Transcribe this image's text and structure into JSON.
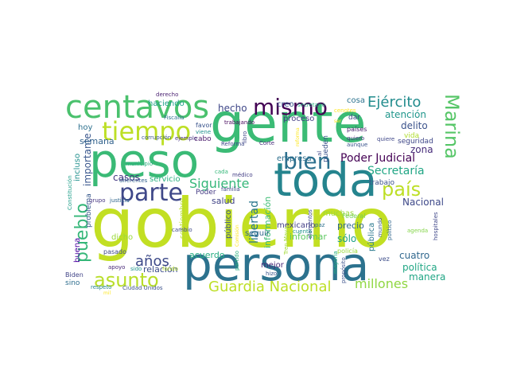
{
  "word_cloud": {
    "words": [
      {
        "text": "gobierno",
        "color": "#c2df23"
      },
      {
        "text": "gente",
        "color": "#3bbb75"
      },
      {
        "text": "persona",
        "color": "#2c728e"
      },
      {
        "text": "toda",
        "color": "#25848e"
      },
      {
        "text": "peso",
        "color": "#3aba76"
      },
      {
        "text": "centavos",
        "color": "#4ac16d"
      },
      {
        "text": "tiempo",
        "color": "#bddf26"
      },
      {
        "text": "mismo",
        "color": "#440154"
      },
      {
        "text": "parte",
        "color": "#3f4889"
      },
      {
        "text": "bien",
        "color": "#2d708e"
      },
      {
        "text": "asunto",
        "color": "#b8de29"
      },
      {
        "text": "Guardia Nacional",
        "color": "#bddf26"
      },
      {
        "text": "Marina",
        "color": "#56c667"
      },
      {
        "text": "pueblo",
        "color": "#35b779"
      },
      {
        "text": "país",
        "color": "#bddf26"
      },
      {
        "text": "Ejército",
        "color": "#228c8d"
      },
      {
        "text": "Siguiente",
        "color": "#35b779"
      },
      {
        "text": "millones",
        "color": "#90d743"
      },
      {
        "text": "años",
        "color": "#3e4a89"
      },
      {
        "text": "Poder Judicial",
        "color": "#440154"
      },
      {
        "text": "Secretaría",
        "color": "#21a685"
      },
      {
        "text": "hecho",
        "color": "#3f4788"
      },
      {
        "text": "libertad",
        "color": "#2a768e"
      },
      {
        "text": "información",
        "color": "#3dbc74"
      },
      {
        "text": "atención",
        "color": "#1f968b"
      },
      {
        "text": "delito",
        "color": "#3b528b"
      },
      {
        "text": "zona",
        "color": "#472c7a"
      },
      {
        "text": "Nacional",
        "color": "#3e4989"
      },
      {
        "text": "política",
        "color": "#22a785"
      },
      {
        "text": "cuatro",
        "color": "#31688e"
      },
      {
        "text": "manera",
        "color": "#21a685"
      },
      {
        "text": "importante",
        "color": "#39568c"
      },
      {
        "text": "semana",
        "color": "#33638d"
      },
      {
        "text": "casos",
        "color": "#453781"
      },
      {
        "text": "servicio",
        "color": "#29af7f"
      },
      {
        "text": "salud",
        "color": "#414487"
      },
      {
        "text": "precio",
        "color": "#30698e"
      },
      {
        "text": "sólo",
        "color": "#1fa187"
      },
      {
        "text": "informar",
        "color": "#5ec962"
      },
      {
        "text": "mexicano",
        "color": "#433e85"
      },
      {
        "text": "muchas",
        "color": "#9bd93c"
      },
      {
        "text": "relación",
        "color": "#3d4d8a"
      },
      {
        "text": "acuerdo",
        "color": "#25ac82"
      },
      {
        "text": "haciendo",
        "color": "#1fa088"
      },
      {
        "text": "creo",
        "color": "#39568c"
      },
      {
        "text": "cosa",
        "color": "#2c738e"
      },
      {
        "text": "seguir",
        "color": "#31678e"
      },
      {
        "text": "mejor",
        "color": "#482878"
      },
      {
        "text": "público",
        "color": "#3a548c"
      },
      {
        "text": "pública",
        "color": "#2a788e"
      },
      {
        "text": "seguridad",
        "color": "#3f4788"
      },
      {
        "text": "trabajo",
        "color": "#3b528b"
      },
      {
        "text": "hoy",
        "color": "#2d718e"
      },
      {
        "text": "incluso",
        "color": "#21908d"
      },
      {
        "text": "buena",
        "color": "#4c02a1"
      },
      {
        "text": "dicho",
        "color": "#9bd93c"
      },
      {
        "text": "proceso",
        "color": "#433d84"
      },
      {
        "text": "pueden",
        "color": "#3b528b"
      },
      {
        "text": "quiero",
        "color": "#46327e"
      },
      {
        "text": "vida",
        "color": "#b0dd2f"
      },
      {
        "text": "dar",
        "color": "#3e4989"
      },
      {
        "text": "empresa",
        "color": "#2e6f8e"
      },
      {
        "text": "cabo",
        "color": "#48186a"
      },
      {
        "text": "favor",
        "color": "#3a548c"
      },
      {
        "text": "problema",
        "color": "#38598c"
      },
      {
        "text": "Poder",
        "color": "#443a83"
      },
      {
        "text": "septiembre",
        "color": "#b8de29"
      },
      {
        "text": "pasado",
        "color": "#3f4889"
      },
      {
        "text": "sino",
        "color": "#2e6e8e"
      },
      {
        "text": "Biden",
        "color": "#414487"
      },
      {
        "text": "respeto",
        "color": "#25848e"
      },
      {
        "text": "Ciudad Unidos",
        "color": "#3b518b"
      },
      {
        "text": "apoyo",
        "color": "#482878"
      },
      {
        "text": "sido",
        "color": "#20928c"
      },
      {
        "text": "fondo",
        "color": "#b5de2b"
      },
      {
        "text": "cambio",
        "color": "#3e4989"
      },
      {
        "text": "grupo",
        "color": "#453581"
      },
      {
        "text": "justicia",
        "color": "#31678e"
      },
      {
        "text": "diferentes",
        "color": "#33628d"
      },
      {
        "text": "municipio",
        "color": "#29af7f"
      },
      {
        "text": "Constitución",
        "color": "#1f9e89"
      },
      {
        "text": "derecho",
        "color": "#481f70"
      },
      {
        "text": "corrupción",
        "color": "#39558c"
      },
      {
        "text": "ejemplo",
        "color": "#46327e"
      },
      {
        "text": "Fiscalía",
        "color": "#2c728e"
      },
      {
        "text": "viene",
        "color": "#21908d"
      },
      {
        "text": "trabajando",
        "color": "#46085c"
      },
      {
        "text": "secretario",
        "color": "#25ac82"
      },
      {
        "text": "cenotes",
        "color": "#fde725"
      },
      {
        "text": "reforma",
        "color": "#fde725"
      },
      {
        "text": "Reforma",
        "color": "#3e4989"
      },
      {
        "text": "libro",
        "color": "#3f4788"
      },
      {
        "text": "Corte",
        "color": "#472c7a"
      },
      {
        "text": "países",
        "color": "#481a6c"
      },
      {
        "text": "aunque",
        "color": "#3a548c"
      },
      {
        "text": "quiere",
        "color": "#3f4788"
      },
      {
        "text": "médico",
        "color": "#433e85"
      },
      {
        "text": "familia",
        "color": "#404688"
      },
      {
        "text": "cada",
        "color": "#35b779"
      },
      {
        "text": "Comisión",
        "color": "#fde725"
      },
      {
        "text": "partido",
        "color": "#29af7f"
      },
      {
        "text": "hizo",
        "color": "#39558c"
      },
      {
        "text": "Tren Maya",
        "color": "#a2da37"
      },
      {
        "text": "mayoría",
        "color": "#26ad81"
      },
      {
        "text": "propósito",
        "color": "#3b518b"
      },
      {
        "text": "Federal",
        "color": "#75d054"
      },
      {
        "text": "vez",
        "color": "#3d4d8a"
      },
      {
        "text": "policía",
        "color": "#9bd93c"
      },
      {
        "text": "elementos",
        "color": "#3f4889"
      },
      {
        "text": "iba",
        "color": "#cde11d"
      },
      {
        "text": "paz",
        "color": "#2d708e"
      },
      {
        "text": "cuenta",
        "color": "#20928c"
      },
      {
        "text": "mundo",
        "color": "#38598c"
      },
      {
        "text": "político",
        "color": "#31678e"
      },
      {
        "text": "agenda",
        "color": "#85d54a"
      },
      {
        "text": "hospitales",
        "color": "#3f4788"
      },
      {
        "text": "N",
        "color": "#2c728e"
      },
      {
        "text": "al",
        "color": "#3f4788"
      },
      {
        "text": "mil",
        "color": "#fde725"
      },
      {
        "text": "ser",
        "color": "#fde725"
      }
    ]
  }
}
